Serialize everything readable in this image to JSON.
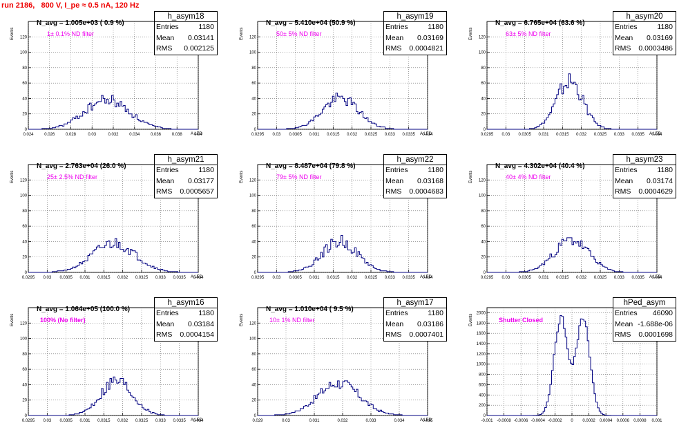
{
  "page_title": "run 2186,   800 V, I_pe ≈ 0.5 nA, 120 Hz",
  "ylabel": "Events",
  "xlabel": "A LED",
  "colors": {
    "hist": "#000080",
    "title": "#ee0000",
    "filter": "#ee00ee",
    "grid": "#666666"
  },
  "stats_labels": {
    "entries": "Entries",
    "mean": "Mean",
    "rms": "RMS"
  },
  "chart_data": [
    {
      "type": "bar",
      "name": "h_asym18",
      "title": "N_avg = 1.005e+03 ( 0.9 %)",
      "annotation": "1± 0.1% ND filter",
      "stats": {
        "entries": "1180",
        "mean": "0.03141",
        "rms": "0.002125"
      },
      "xlim": [
        0.024,
        0.04
      ],
      "ylim": [
        0,
        140
      ],
      "xticks": [
        0.024,
        0.026,
        0.028,
        0.03,
        0.032,
        0.034,
        0.036,
        0.038,
        0.04
      ],
      "xtick_labels": [
        "0.024",
        "0.026",
        "0.028",
        "0.03",
        "0.032",
        "0.034",
        "0.036",
        "0.038",
        "0.04"
      ],
      "yticks": [
        0,
        20,
        40,
        60,
        80,
        100,
        120
      ],
      "ytick_labels": [
        "0",
        "20",
        "40",
        "60",
        "80",
        "100",
        "120"
      ],
      "peaks": [
        {
          "mu": 0.0314,
          "sigma": 0.0021,
          "amp": 38
        }
      ],
      "noise": 0.22,
      "seed": 18
    },
    {
      "type": "bar",
      "name": "h_asym19",
      "title": "N_avg = 5.410e+04 (50.9 %)",
      "annotation": "50± 5% ND filter",
      "stats": {
        "entries": "1180",
        "mean": "0.03169",
        "rms": "0.0004821"
      },
      "xlim": [
        0.0295,
        0.034
      ],
      "ylim": [
        0,
        140
      ],
      "xticks": [
        0.0295,
        0.03,
        0.0305,
        0.031,
        0.0315,
        0.032,
        0.0325,
        0.033,
        0.0335,
        0.034
      ],
      "xtick_labels": [
        "0.0295",
        "0.03",
        "0.0305",
        "0.031",
        "0.0315",
        "0.032",
        "0.0325",
        "0.033",
        "0.0335",
        "0.034"
      ],
      "yticks": [
        0,
        20,
        40,
        60,
        80,
        100,
        120
      ],
      "ytick_labels": [
        "0",
        "20",
        "40",
        "60",
        "80",
        "100",
        "120"
      ],
      "peaks": [
        {
          "mu": 0.03169,
          "sigma": 0.00048,
          "amp": 40
        }
      ],
      "noise": 0.2,
      "seed": 19
    },
    {
      "type": "bar",
      "name": "h_asym20",
      "title": "N_avg = 6.765e+04 (63.6 %)",
      "annotation": "63± 5% ND filter",
      "stats": {
        "entries": "1180",
        "mean": "0.03169",
        "rms": "0.0003486"
      },
      "xlim": [
        0.0295,
        0.034
      ],
      "ylim": [
        0,
        140
      ],
      "xticks": [
        0.0295,
        0.03,
        0.0305,
        0.031,
        0.0315,
        0.032,
        0.0325,
        0.033,
        0.0335,
        0.034
      ],
      "xtick_labels": [
        "0.0295",
        "0.03",
        "0.0305",
        "0.031",
        "0.0315",
        "0.032",
        "0.0325",
        "0.033",
        "0.0335",
        "0.034"
      ],
      "yticks": [
        0,
        20,
        40,
        60,
        80,
        100,
        120
      ],
      "ytick_labels": [
        "0",
        "20",
        "40",
        "60",
        "80",
        "100",
        "120"
      ],
      "peaks": [
        {
          "mu": 0.03169,
          "sigma": 0.00035,
          "amp": 62
        }
      ],
      "noise": 0.2,
      "seed": 20
    },
    {
      "type": "bar",
      "name": "h_asym21",
      "title": "N_avg = 2.763e+04 (26.0 %)",
      "annotation": "25± 2.5% ND filter",
      "stats": {
        "entries": "1180",
        "mean": "0.03177",
        "rms": "0.0005657"
      },
      "xlim": [
        0.0295,
        0.034
      ],
      "ylim": [
        0,
        140
      ],
      "xticks": [
        0.0295,
        0.03,
        0.0305,
        0.031,
        0.0315,
        0.032,
        0.0325,
        0.033,
        0.0335,
        0.034
      ],
      "xtick_labels": [
        "0.0295",
        "0.03",
        "0.0305",
        "0.031",
        "0.0315",
        "0.032",
        "0.0325",
        "0.033",
        "0.0335",
        "0.034"
      ],
      "yticks": [
        0,
        20,
        40,
        60,
        80,
        100,
        120
      ],
      "ytick_labels": [
        "0",
        "20",
        "40",
        "60",
        "80",
        "100",
        "120"
      ],
      "peaks": [
        {
          "mu": 0.03177,
          "sigma": 0.00057,
          "amp": 38
        }
      ],
      "noise": 0.22,
      "seed": 21
    },
    {
      "type": "bar",
      "name": "h_asym22",
      "title": "N_avg = 8.487e+04 (79.8 %)",
      "annotation": "79± 5% ND filter",
      "stats": {
        "entries": "1180",
        "mean": "0.03168",
        "rms": "0.0004683"
      },
      "xlim": [
        0.0295,
        0.034
      ],
      "ylim": [
        0,
        140
      ],
      "xticks": [
        0.0295,
        0.03,
        0.0305,
        0.031,
        0.0315,
        0.032,
        0.0325,
        0.033,
        0.0335,
        0.034
      ],
      "xtick_labels": [
        "0.0295",
        "0.03",
        "0.0305",
        "0.031",
        "0.0315",
        "0.032",
        "0.0325",
        "0.033",
        "0.0335",
        "0.034"
      ],
      "yticks": [
        0,
        20,
        40,
        60,
        80,
        100,
        120
      ],
      "ytick_labels": [
        "0",
        "20",
        "40",
        "60",
        "80",
        "100",
        "120"
      ],
      "peaks": [
        {
          "mu": 0.03168,
          "sigma": 0.00047,
          "amp": 40
        }
      ],
      "noise": 0.22,
      "seed": 22
    },
    {
      "type": "bar",
      "name": "h_asym23",
      "title": "N_avg = 4.302e+04 (40.4 %)",
      "annotation": "40± 4% ND filter",
      "stats": {
        "entries": "1180",
        "mean": "0.03174",
        "rms": "0.0004629"
      },
      "xlim": [
        0.0295,
        0.034
      ],
      "ylim": [
        0,
        140
      ],
      "xticks": [
        0.0295,
        0.03,
        0.0305,
        0.031,
        0.0315,
        0.032,
        0.0325,
        0.033,
        0.0335,
        0.034
      ],
      "xtick_labels": [
        "0.0295",
        "0.03",
        "0.0305",
        "0.031",
        "0.0315",
        "0.032",
        "0.0325",
        "0.033",
        "0.0335",
        "0.034"
      ],
      "yticks": [
        0,
        20,
        40,
        60,
        80,
        100,
        120
      ],
      "ytick_labels": [
        "0",
        "20",
        "40",
        "60",
        "80",
        "100",
        "120"
      ],
      "peaks": [
        {
          "mu": 0.03174,
          "sigma": 0.00046,
          "amp": 42
        }
      ],
      "noise": 0.2,
      "seed": 23
    },
    {
      "type": "bar",
      "name": "h_asym16",
      "title": "N_avg = 1.064e+05 (100.0 %)",
      "annotation": "100% (No filter)",
      "stats": {
        "entries": "1180",
        "mean": "0.03184",
        "rms": "0.0004154"
      },
      "xlim": [
        0.0295,
        0.034
      ],
      "ylim": [
        0,
        140
      ],
      "xticks": [
        0.0295,
        0.03,
        0.0305,
        0.031,
        0.0315,
        0.032,
        0.0325,
        0.033,
        0.0335,
        0.034
      ],
      "xtick_labels": [
        "0.0295",
        "0.03",
        "0.0305",
        "0.031",
        "0.0315",
        "0.032",
        "0.0325",
        "0.033",
        "0.0335",
        "0.034"
      ],
      "yticks": [
        0,
        20,
        40,
        60,
        80,
        100,
        120
      ],
      "ytick_labels": [
        "0",
        "20",
        "40",
        "60",
        "80",
        "100",
        "120"
      ],
      "peaks": [
        {
          "mu": 0.03184,
          "sigma": 0.00042,
          "amp": 45
        }
      ],
      "noise": 0.22,
      "seed": 16
    },
    {
      "type": "bar",
      "name": "h_asym17",
      "title": "N_avg = 1.010e+04 ( 9.5 %)",
      "annotation": "10± 1% ND filter",
      "stats": {
        "entries": "1180",
        "mean": "0.03186",
        "rms": "0.0007401"
      },
      "xlim": [
        0.029,
        0.035
      ],
      "ylim": [
        0,
        140
      ],
      "xticks": [
        0.029,
        0.03,
        0.031,
        0.032,
        0.033,
        0.034,
        0.035
      ],
      "xtick_labels": [
        "0.029",
        "0.03",
        "0.031",
        "0.032",
        "0.033",
        "0.034",
        "0.035"
      ],
      "yticks": [
        0,
        20,
        40,
        60,
        80,
        100,
        120
      ],
      "ytick_labels": [
        "0",
        "20",
        "40",
        "60",
        "80",
        "100",
        "120"
      ],
      "peaks": [
        {
          "mu": 0.03186,
          "sigma": 0.00074,
          "amp": 42
        }
      ],
      "noise": 0.2,
      "seed": 17
    },
    {
      "type": "bar",
      "name": "hPed_asym",
      "title": "",
      "annotation": "Shutter Closed",
      "stats": {
        "entries": "46090",
        "mean": "-1.688e-06",
        "rms": "0.0001698"
      },
      "xlim": [
        -0.001,
        0.001
      ],
      "ylim": [
        0,
        2100
      ],
      "xticks": [
        -0.001,
        -0.0008,
        -0.0006,
        -0.0004,
        -0.0002,
        0,
        0.0002,
        0.0004,
        0.0006,
        0.0008,
        0.001
      ],
      "xtick_labels": [
        "-0.001",
        "-0.0008",
        "-0.0006",
        "-0.0004",
        "-0.0002",
        "0",
        "0.0002",
        "0.0004",
        "0.0006",
        "0.0008",
        "0.001"
      ],
      "yticks": [
        0,
        200,
        400,
        600,
        800,
        1000,
        1200,
        1400,
        1600,
        1800,
        2000
      ],
      "ytick_labels": [
        "0",
        "200",
        "400",
        "600",
        "800",
        "1000",
        "1200",
        "1400",
        "1600",
        "1800",
        "2000"
      ],
      "peaks": [
        {
          "mu": -0.00013,
          "sigma": 8e-05,
          "amp": 1900
        },
        {
          "mu": 0.00013,
          "sigma": 8e-05,
          "amp": 1900
        }
      ],
      "noise": 0.04,
      "seed": 99
    }
  ]
}
